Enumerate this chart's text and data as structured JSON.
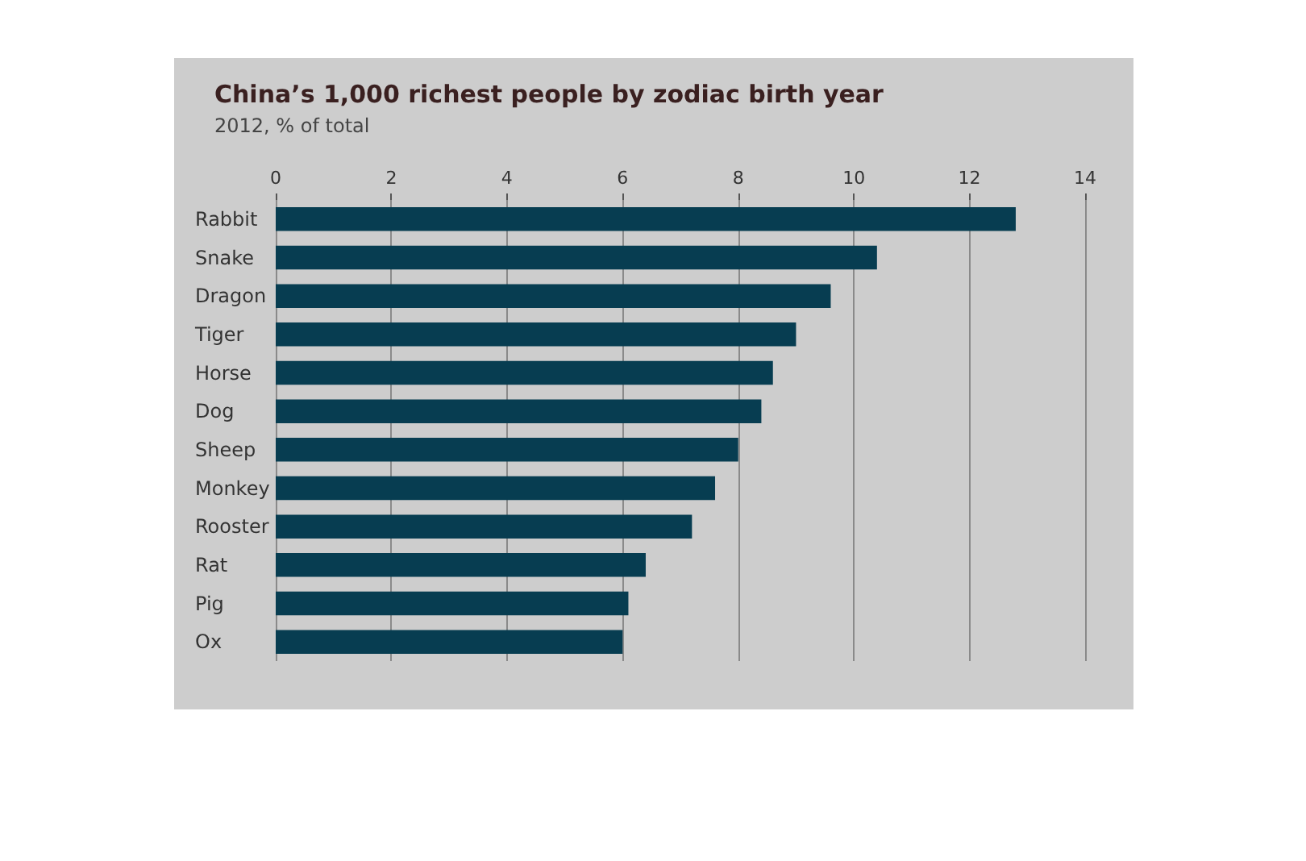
{
  "chart_data": {
    "type": "bar",
    "orientation": "horizontal",
    "title": "China’s 1,000 richest people by zodiac birth year",
    "subtitle": "2012, % of total",
    "categories": [
      "Rabbit",
      "Snake",
      "Dragon",
      "Tiger",
      "Horse",
      "Dog",
      "Sheep",
      "Monkey",
      "Rooster",
      "Rat",
      "Pig",
      "Ox"
    ],
    "values": [
      12.8,
      10.4,
      9.6,
      9.0,
      8.6,
      8.4,
      8.0,
      7.6,
      7.2,
      6.4,
      6.1,
      6.0
    ],
    "color": "#073d51",
    "xlim": [
      0,
      14
    ],
    "xticks": [
      0,
      2,
      4,
      6,
      8,
      10,
      12,
      14
    ],
    "grid": "x"
  }
}
